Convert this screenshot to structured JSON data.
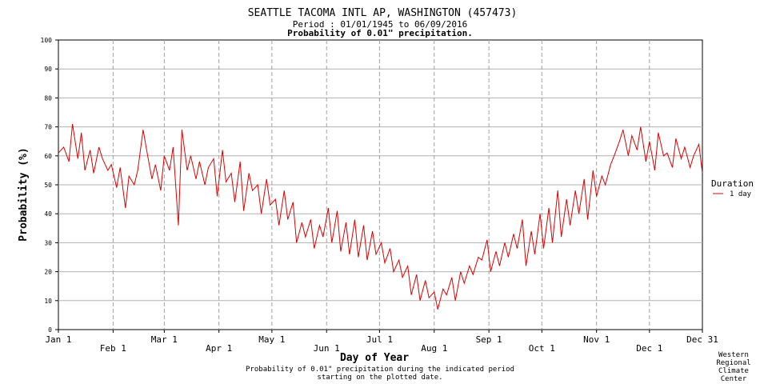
{
  "header": {
    "title": "SEATTLE TACOMA INTL AP, WASHINGTON   (457473)",
    "period": "Period : 01/01/1945 to 06/09/2016",
    "subtitle": "Probability of 0.01\" precipitation."
  },
  "footer": {
    "note_line1": "Probability of 0.01\" precipitation during the indicated period",
    "note_line2": "starting on the plotted date.",
    "credit": [
      "Western",
      "Regional",
      "Climate",
      "Center"
    ]
  },
  "legend": {
    "title": "Duration",
    "entry": "1 day",
    "placement": "right",
    "color": "#dd0000"
  },
  "chart_data": {
    "type": "line",
    "title": "Probability of 0.01\" precipitation.",
    "xlabel": "Day of Year",
    "ylabel": "Probability (%)",
    "ylim": [
      0,
      100
    ],
    "xlim": [
      1,
      366
    ],
    "y_ticks": [
      0,
      10,
      20,
      30,
      40,
      50,
      60,
      70,
      80,
      90,
      100
    ],
    "x_ticks": [
      {
        "day": 1,
        "label": "Jan 1",
        "row": 0
      },
      {
        "day": 32,
        "label": "Feb 1",
        "row": 1
      },
      {
        "day": 61,
        "label": "Mar 1",
        "row": 0
      },
      {
        "day": 92,
        "label": "Apr 1",
        "row": 1
      },
      {
        "day": 122,
        "label": "May 1",
        "row": 0
      },
      {
        "day": 153,
        "label": "Jun 1",
        "row": 1
      },
      {
        "day": 183,
        "label": "Jul 1",
        "row": 0
      },
      {
        "day": 214,
        "label": "Aug 1",
        "row": 1
      },
      {
        "day": 245,
        "label": "Sep 1",
        "row": 0
      },
      {
        "day": 275,
        "label": "Oct 1",
        "row": 1
      },
      {
        "day": 306,
        "label": "Nov 1",
        "row": 0
      },
      {
        "day": 336,
        "label": "Dec 1",
        "row": 1
      },
      {
        "day": 366,
        "label": "Dec 31",
        "row": 0
      }
    ],
    "grid": true,
    "series": [
      {
        "name": "1 day",
        "color": "#dd0000",
        "x": [
          1,
          4,
          7,
          9,
          12,
          14,
          16,
          19,
          21,
          24,
          26,
          29,
          31,
          34,
          36,
          39,
          41,
          44,
          46,
          49,
          51,
          54,
          56,
          59,
          61,
          64,
          66,
          69,
          71,
          74,
          76,
          79,
          81,
          84,
          86,
          89,
          91,
          94,
          96,
          99,
          101,
          104,
          106,
          109,
          111,
          114,
          116,
          119,
          121,
          124,
          126,
          129,
          131,
          134,
          136,
          139,
          141,
          144,
          146,
          149,
          151,
          154,
          156,
          159,
          161,
          164,
          166,
          169,
          171,
          174,
          176,
          179,
          181,
          184,
          186,
          189,
          191,
          194,
          196,
          199,
          201,
          204,
          206,
          209,
          211,
          214,
          216,
          219,
          221,
          224,
          226,
          229,
          231,
          234,
          236,
          239,
          241,
          244,
          246,
          249,
          251,
          254,
          256,
          259,
          261,
          264,
          266,
          269,
          271,
          274,
          276,
          279,
          281,
          284,
          286,
          289,
          291,
          294,
          296,
          299,
          301,
          304,
          306,
          309,
          311,
          314,
          316,
          319,
          321,
          324,
          326,
          329,
          331,
          334,
          336,
          339,
          341,
          344,
          346,
          349,
          351,
          354,
          356,
          359,
          361,
          364,
          366
        ],
        "values": [
          61,
          63,
          58,
          71,
          59,
          68,
          55,
          62,
          54,
          63,
          59,
          55,
          57,
          49,
          56,
          42,
          53,
          50,
          55,
          69,
          62,
          52,
          57,
          48,
          60,
          55,
          63,
          36,
          69,
          55,
          60,
          52,
          58,
          50,
          56,
          59,
          46,
          62,
          51,
          54,
          44,
          58,
          41,
          54,
          48,
          50,
          40,
          52,
          43,
          45,
          36,
          48,
          38,
          44,
          30,
          37,
          32,
          38,
          28,
          36,
          32,
          42,
          30,
          41,
          27,
          37,
          26,
          38,
          25,
          36,
          24,
          34,
          26,
          30,
          23,
          28,
          20,
          24,
          18,
          22,
          12,
          19,
          10,
          17,
          11,
          13,
          7,
          14,
          12,
          18,
          10,
          20,
          16,
          22,
          19,
          25,
          24,
          31,
          20,
          27,
          22,
          30,
          25,
          33,
          28,
          38,
          22,
          34,
          26,
          40,
          28,
          42,
          30,
          48,
          32,
          45,
          36,
          48,
          40,
          52,
          38,
          55,
          46,
          53,
          50,
          57,
          60,
          65,
          69,
          60,
          67,
          62,
          70,
          58,
          65,
          55,
          68,
          60,
          61,
          56,
          66,
          59,
          63,
          56,
          60,
          64,
          54
        ]
      }
    ]
  }
}
